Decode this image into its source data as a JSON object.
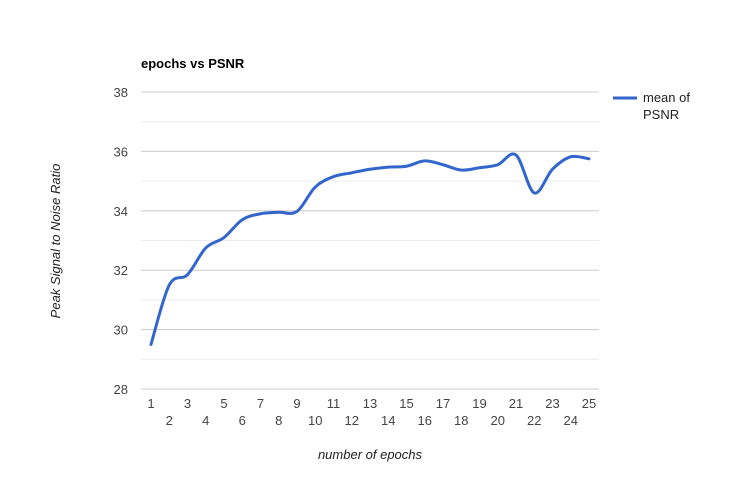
{
  "chart_data": {
    "type": "line",
    "title": "epochs vs PSNR",
    "xlabel": "number of epochs",
    "ylabel": "Peak Signal to Noise Ratio",
    "categories": [
      "1",
      "2",
      "3",
      "4",
      "5",
      "6",
      "7",
      "8",
      "9",
      "10",
      "11",
      "12",
      "13",
      "14",
      "15",
      "16",
      "17",
      "18",
      "19",
      "20",
      "21",
      "22",
      "23",
      "24",
      "25"
    ],
    "series": [
      {
        "name": "mean of PSNR",
        "color": "#3366cc",
        "values": [
          29.5,
          31.5,
          31.85,
          32.75,
          33.1,
          33.7,
          33.9,
          33.95,
          33.98,
          34.8,
          35.15,
          35.28,
          35.4,
          35.47,
          35.5,
          35.68,
          35.55,
          35.37,
          35.45,
          35.55,
          35.88,
          34.6,
          35.4,
          35.82,
          35.75
        ]
      }
    ],
    "ylim": [
      28,
      38
    ],
    "yticks": [
      28,
      30,
      32,
      34,
      36,
      38
    ],
    "grid": true,
    "legend": "right"
  }
}
